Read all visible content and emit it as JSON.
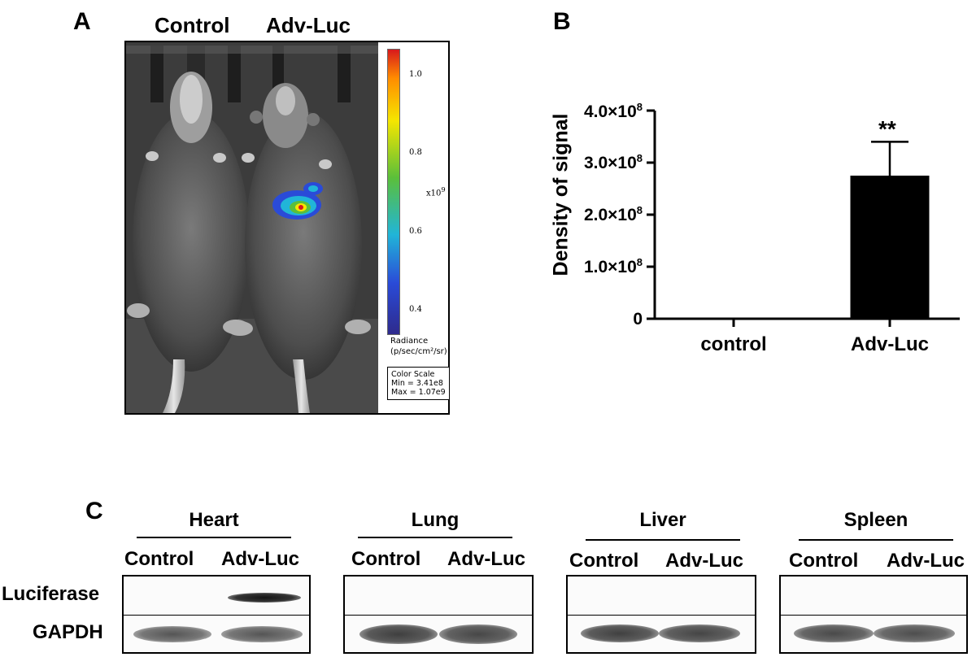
{
  "panels": {
    "a": {
      "letter": "A",
      "group_labels": [
        "Control",
        "Adv-Luc"
      ],
      "colorbar": {
        "ticks": [
          "1.0",
          "0.8",
          "0.6",
          "0.4"
        ],
        "multiplier": "x10",
        "exponent": "9",
        "radiance_title": "Radiance",
        "radiance_units": "(p/sec/cm²/sr)",
        "color_scale_title": "Color Scale",
        "min_text": "Min = 3.41e8",
        "max_text": "Max = 1.07e9"
      }
    },
    "b": {
      "letter": "B",
      "significance": "**",
      "ylabel": "Density of signal",
      "ytick_labels": [
        {
          "m": "0",
          "e": ""
        },
        {
          "m": "1.0×10",
          "e": "8"
        },
        {
          "m": "2.0×10",
          "e": "8"
        },
        {
          "m": "3.0×10",
          "e": "8"
        },
        {
          "m": "4.0×10",
          "e": "8"
        }
      ]
    },
    "c": {
      "letter": "C",
      "row_labels": [
        "Luciferase",
        "GAPDH"
      ],
      "tissues": [
        {
          "name": "Heart",
          "lanes": [
            "Control",
            "Adv-Luc"
          ],
          "luciferase_band": [
            0,
            1
          ]
        },
        {
          "name": "Lung",
          "lanes": [
            "Control",
            "Adv-Luc"
          ],
          "luciferase_band": [
            0,
            0
          ]
        },
        {
          "name": "Liver",
          "lanes": [
            "Control",
            "Adv-Luc"
          ],
          "luciferase_band": [
            0,
            0
          ]
        },
        {
          "name": "Spleen",
          "lanes": [
            "Control",
            "Adv-Luc"
          ],
          "luciferase_band": [
            0,
            0
          ]
        }
      ]
    }
  },
  "chart_data": {
    "type": "bar",
    "categories": [
      "control",
      "Adv-Luc"
    ],
    "values": [
      0,
      275000000
    ],
    "errors": [
      0,
      65000000
    ],
    "ylim": [
      0,
      400000000
    ],
    "ylabel": "Density of signal",
    "xlabel": "",
    "title": "",
    "bar_color": "#000000",
    "grid": false
  },
  "colors": {
    "bar": "#000000",
    "colorbar": [
      "#d7191c",
      "#ff8c00",
      "#f5e600",
      "#5bbf3a",
      "#21b5d8",
      "#2a4bd8",
      "#2e2a8c"
    ]
  }
}
